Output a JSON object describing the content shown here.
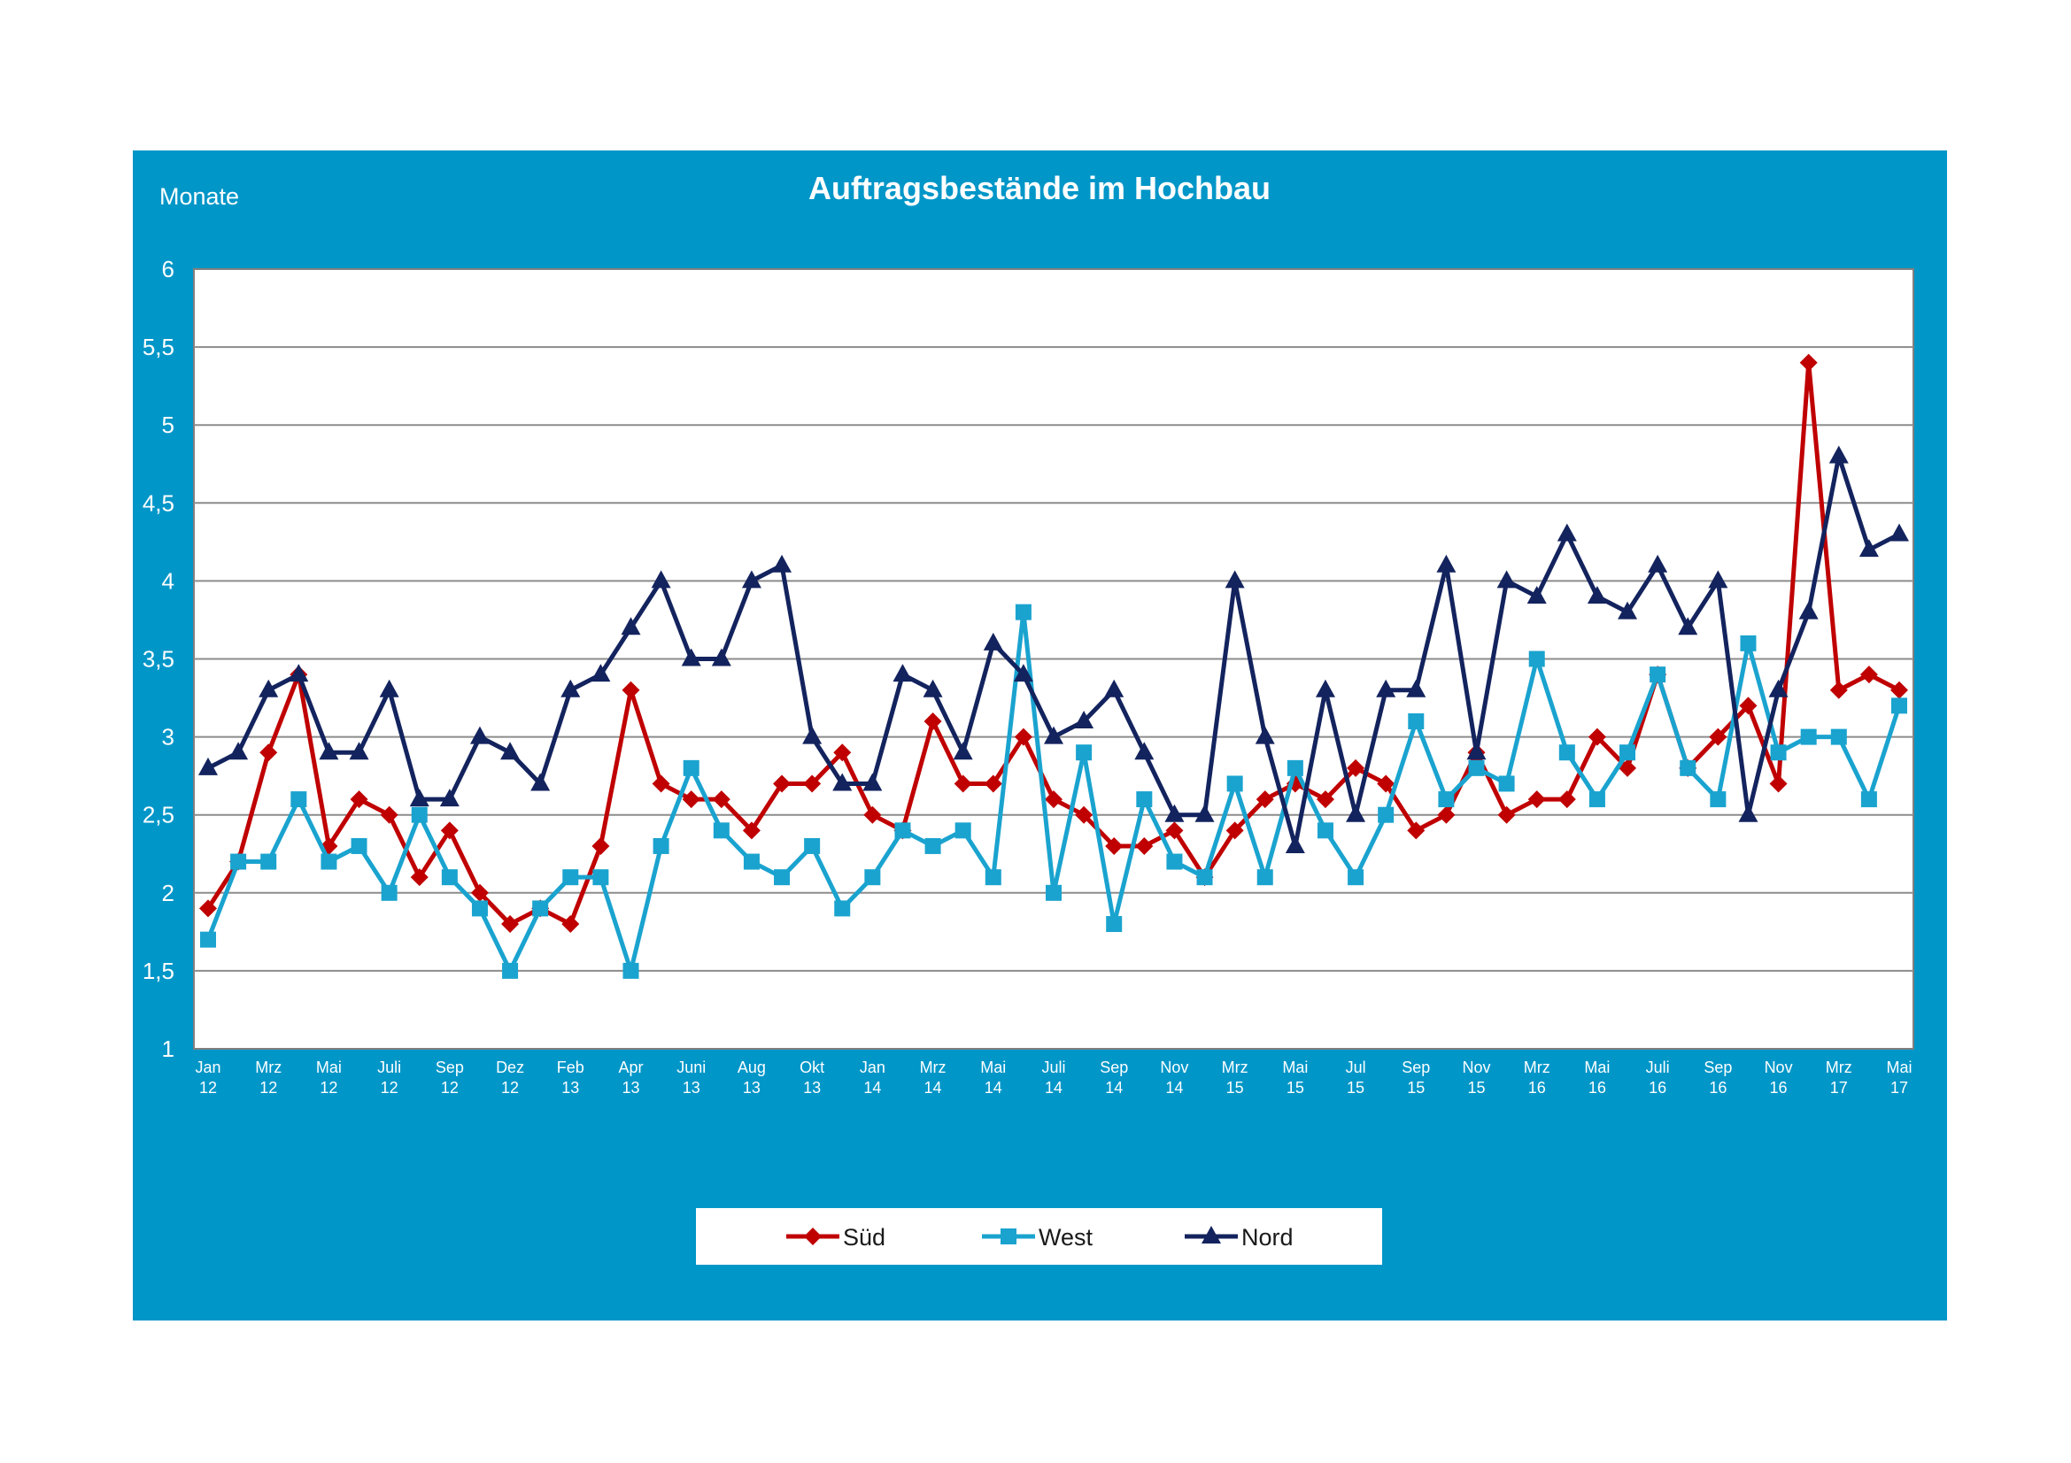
{
  "chart_data": {
    "type": "line",
    "title": "Auftragsbestände im Hochbau",
    "ylabel": "Monate",
    "xlabel": "",
    "ylim": [
      1,
      6
    ],
    "yticks": [
      "1",
      "1,5",
      "2",
      "2,5",
      "3",
      "3,5",
      "4",
      "4,5",
      "5",
      "5,5",
      "6"
    ],
    "grid": true,
    "legend_position": "bottom",
    "x_labels": [
      {
        "index": 0,
        "month": "Jan",
        "year": "12"
      },
      {
        "index": 2,
        "month": "Mrz",
        "year": "12"
      },
      {
        "index": 4,
        "month": "Mai",
        "year": "12"
      },
      {
        "index": 6,
        "month": "Juli",
        "year": "12"
      },
      {
        "index": 8,
        "month": "Sep",
        "year": "12"
      },
      {
        "index": 10,
        "month": "Dez",
        "year": "12"
      },
      {
        "index": 12,
        "month": "Feb",
        "year": "13"
      },
      {
        "index": 14,
        "month": "Apr",
        "year": "13"
      },
      {
        "index": 16,
        "month": "Juni",
        "year": "13"
      },
      {
        "index": 18,
        "month": "Aug",
        "year": "13"
      },
      {
        "index": 20,
        "month": "Okt",
        "year": "13"
      },
      {
        "index": 22,
        "month": "Jan",
        "year": "14"
      },
      {
        "index": 24,
        "month": "Mrz",
        "year": "14"
      },
      {
        "index": 26,
        "month": "Mai",
        "year": "14"
      },
      {
        "index": 28,
        "month": "Juli",
        "year": "14"
      },
      {
        "index": 30,
        "month": "Sep",
        "year": "14"
      },
      {
        "index": 32,
        "month": "Nov",
        "year": "14"
      },
      {
        "index": 34,
        "month": "Mrz",
        "year": "15"
      },
      {
        "index": 36,
        "month": "Mai",
        "year": "15"
      },
      {
        "index": 38,
        "month": "Jul",
        "year": "15"
      },
      {
        "index": 40,
        "month": "Sep",
        "year": "15"
      },
      {
        "index": 42,
        "month": "Nov",
        "year": "15"
      },
      {
        "index": 44,
        "month": "Mrz",
        "year": "16"
      },
      {
        "index": 46,
        "month": "Mai",
        "year": "16"
      },
      {
        "index": 48,
        "month": "Juli",
        "year": "16"
      },
      {
        "index": 50,
        "month": "Sep",
        "year": "16"
      },
      {
        "index": 52,
        "month": "Nov",
        "year": "16"
      },
      {
        "index": 54,
        "month": "Mrz",
        "year": "17"
      },
      {
        "index": 56,
        "month": "Mai",
        "year": "17"
      }
    ],
    "series": [
      {
        "name": "Süd",
        "color": "#C00000",
        "marker": "diamond",
        "values": [
          1.9,
          2.2,
          2.9,
          3.4,
          2.3,
          2.6,
          2.5,
          2.1,
          2.4,
          2.0,
          1.8,
          1.9,
          1.8,
          2.3,
          3.3,
          2.7,
          2.6,
          2.6,
          2.4,
          2.7,
          2.7,
          2.9,
          2.5,
          2.4,
          3.1,
          2.7,
          2.7,
          3.0,
          2.6,
          2.5,
          2.3,
          2.3,
          2.4,
          2.1,
          2.4,
          2.6,
          2.7,
          2.6,
          2.8,
          2.7,
          2.4,
          2.5,
          2.9,
          2.5,
          2.6,
          2.6,
          3.0,
          2.8,
          3.4,
          2.8,
          3.0,
          3.2,
          2.7,
          5.4,
          3.3,
          3.4,
          3.3
        ]
      },
      {
        "name": "West",
        "color": "#1AA3CF",
        "marker": "square",
        "values": [
          1.7,
          2.2,
          2.2,
          2.6,
          2.2,
          2.3,
          2.0,
          2.5,
          2.1,
          1.9,
          1.5,
          1.9,
          2.1,
          2.1,
          1.5,
          2.3,
          2.8,
          2.4,
          2.2,
          2.1,
          2.3,
          1.9,
          2.1,
          2.4,
          2.3,
          2.4,
          2.1,
          3.8,
          2.0,
          2.9,
          1.8,
          2.6,
          2.2,
          2.1,
          2.7,
          2.1,
          2.8,
          2.4,
          2.1,
          2.5,
          3.1,
          2.6,
          2.8,
          2.7,
          3.5,
          2.9,
          2.6,
          2.9,
          3.4,
          2.8,
          2.6,
          3.6,
          2.9,
          3.0,
          3.0,
          2.6,
          3.2
        ]
      },
      {
        "name": "Nord",
        "color": "#13235E",
        "marker": "triangle",
        "values": [
          2.8,
          2.9,
          3.3,
          3.4,
          2.9,
          2.9,
          3.3,
          2.6,
          2.6,
          3.0,
          2.9,
          2.7,
          3.3,
          3.4,
          3.7,
          4.0,
          3.5,
          3.5,
          4.0,
          4.1,
          3.0,
          2.7,
          2.7,
          3.4,
          3.3,
          2.9,
          3.6,
          3.4,
          3.0,
          3.1,
          3.3,
          2.9,
          2.5,
          2.5,
          4.0,
          3.0,
          2.3,
          3.3,
          2.5,
          3.3,
          3.3,
          4.1,
          2.9,
          4.0,
          3.9,
          4.3,
          3.9,
          3.8,
          4.1,
          3.7,
          4.0,
          2.5,
          3.3,
          3.8,
          4.8,
          4.2,
          4.3
        ]
      }
    ]
  }
}
